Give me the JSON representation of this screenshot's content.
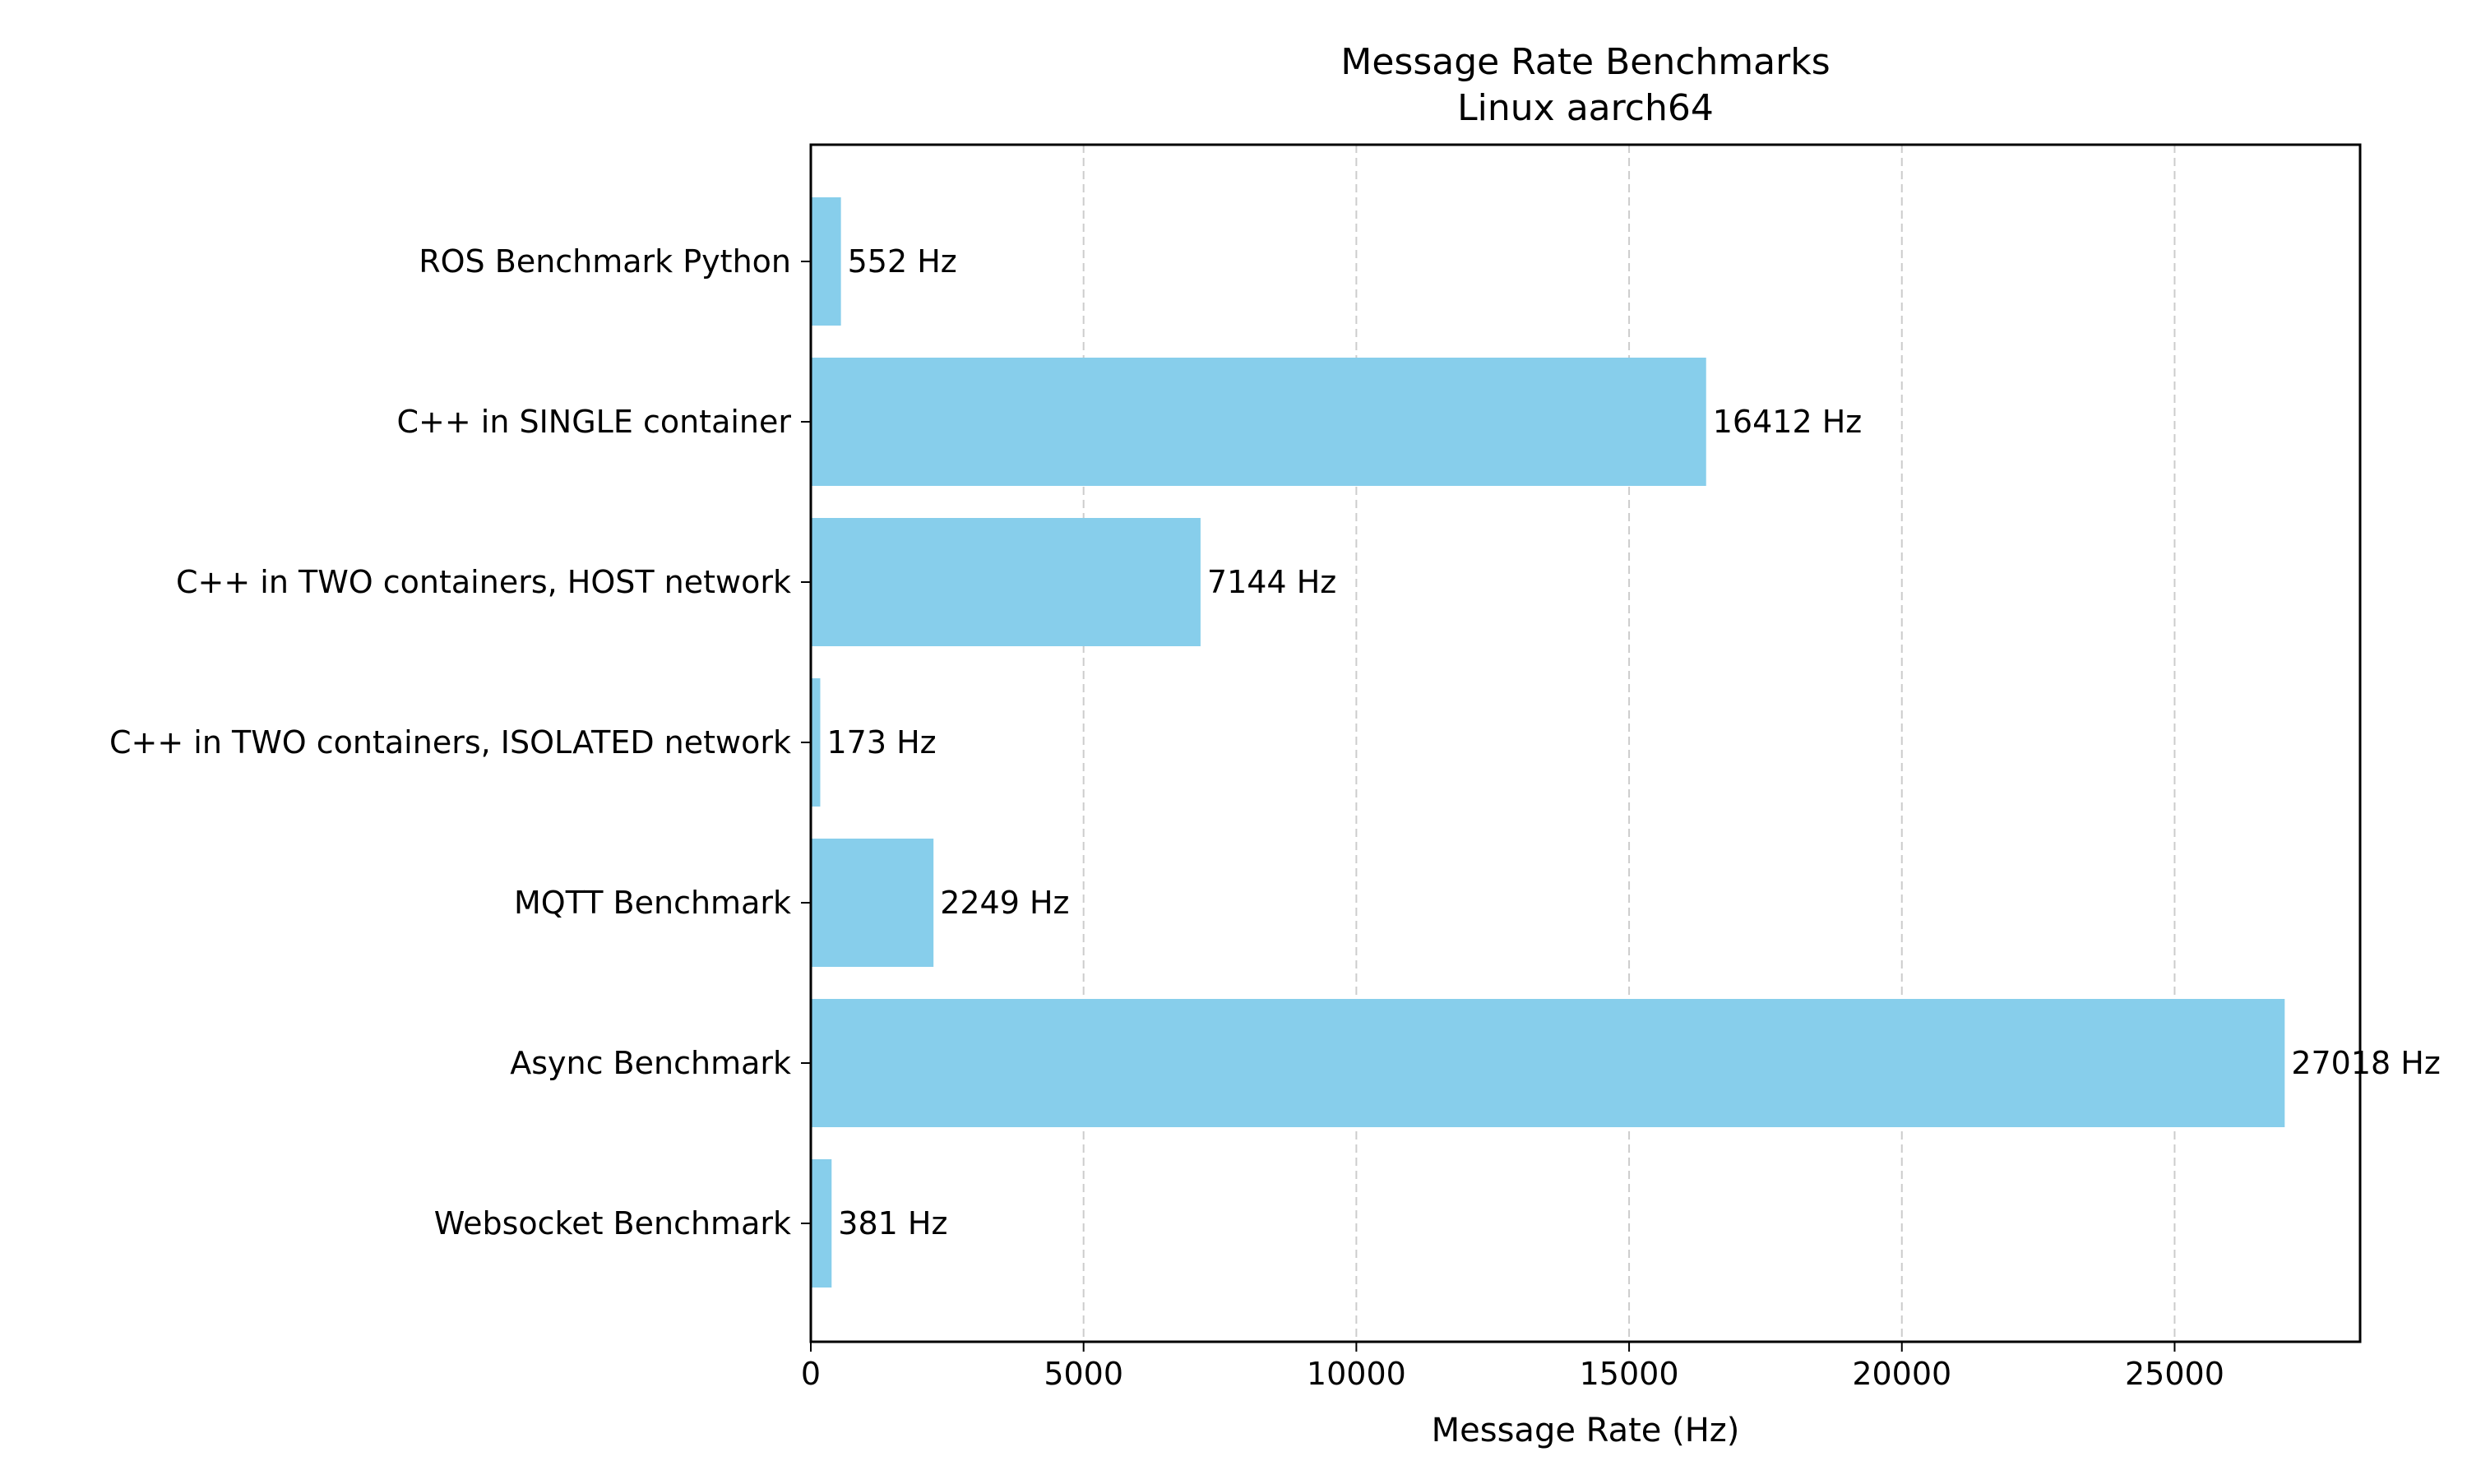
{
  "chart_data": {
    "type": "bar",
    "orientation": "horizontal",
    "title_line1": "Message Rate Benchmarks",
    "title_line2": "Linux  aarch64",
    "xlabel": "Message Rate (Hz)",
    "ylabel": "",
    "xlim": [
      0,
      28400
    ],
    "xticks": [
      0,
      5000,
      10000,
      15000,
      20000,
      25000
    ],
    "xtick_labels": [
      "0",
      "5000",
      "10000",
      "15000",
      "20000",
      "25000"
    ],
    "grid": "x dashed",
    "bar_color": "#87CEEB",
    "categories": [
      "ROS Benchmark Python",
      "C++ in SINGLE container",
      "C++ in TWO containers, HOST network",
      "C++ in TWO containers, ISOLATED network",
      "MQTT Benchmark",
      "Async Benchmark",
      "Websocket Benchmark"
    ],
    "values": [
      552,
      16412,
      7144,
      173,
      2249,
      27018,
      381
    ],
    "data_labels": [
      "552 Hz",
      "16412 Hz",
      "7144 Hz",
      "173 Hz",
      "2249 Hz",
      "27018 Hz",
      "381 Hz"
    ]
  }
}
